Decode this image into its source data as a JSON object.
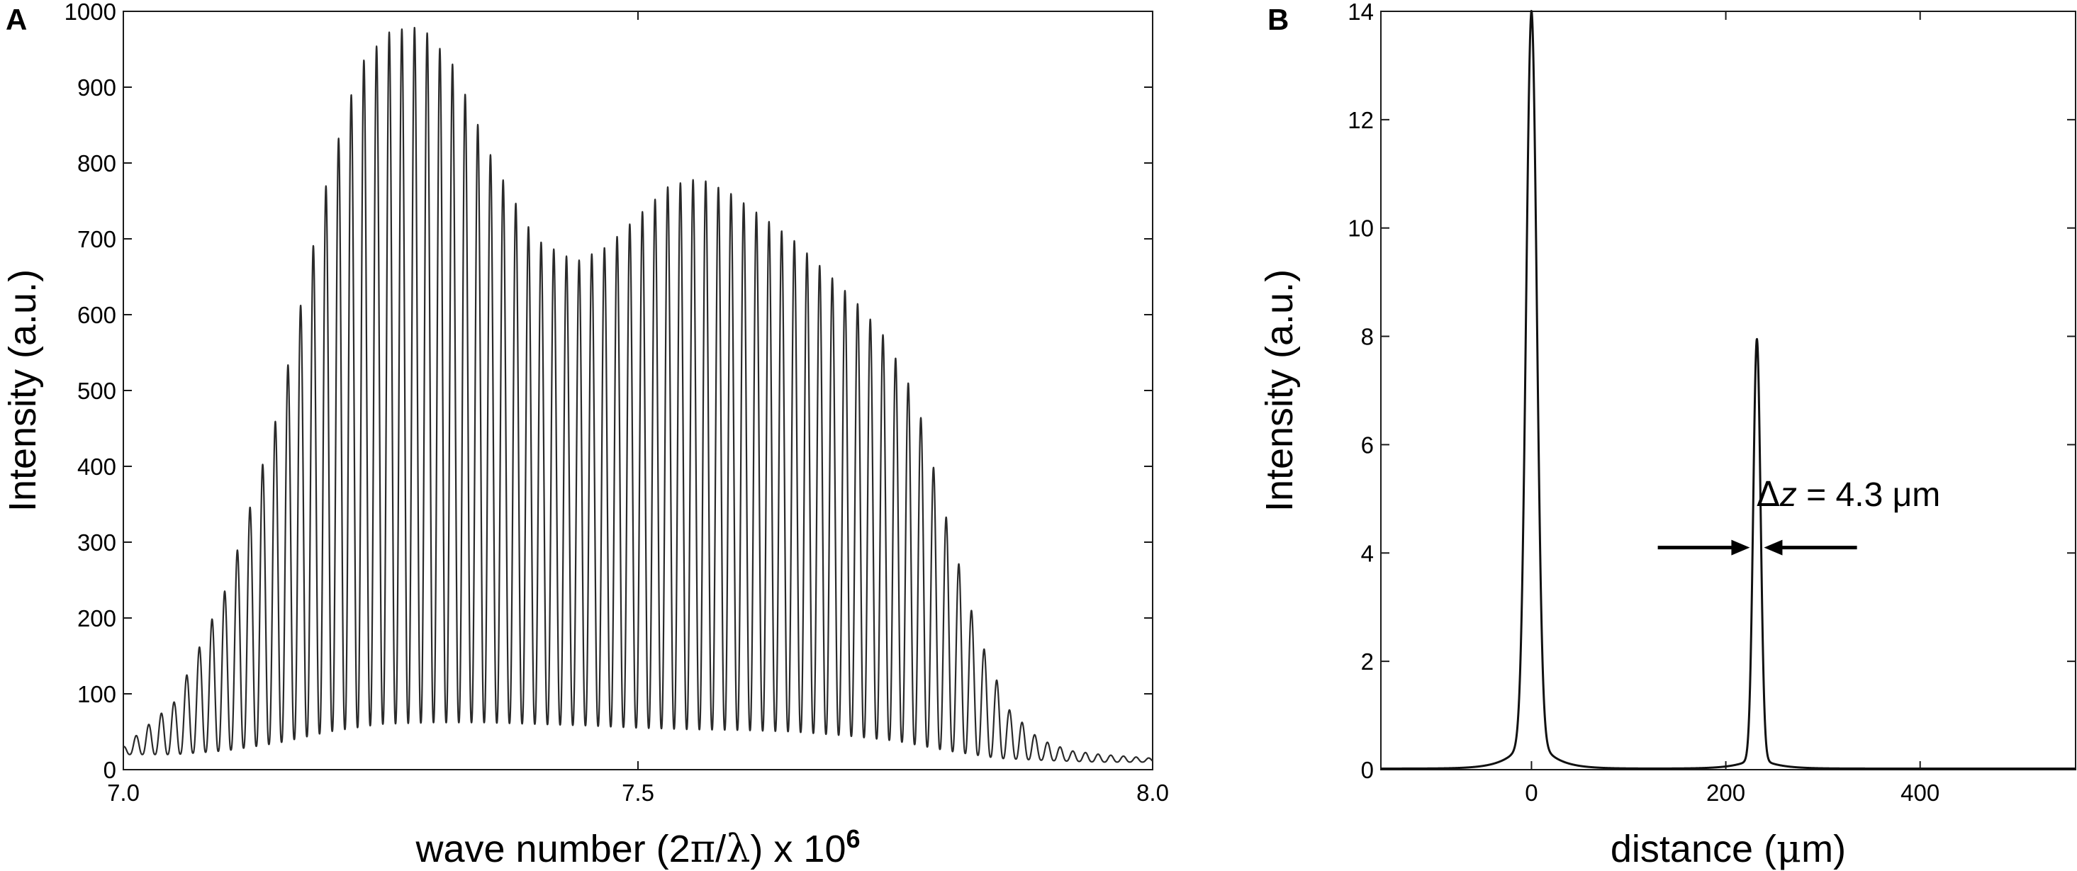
{
  "chart_data": [
    {
      "panel_label": "A",
      "type": "line",
      "title": "",
      "xlabel_parts": [
        "wave number  (2",
        "π",
        "/",
        "λ",
        ") x 10",
        "6"
      ],
      "ylabel": "Intensity (a.u.)",
      "xlim": [
        7.0,
        8.0
      ],
      "ylim": [
        0,
        1000
      ],
      "xticks": [
        7.0,
        7.5,
        8.0
      ],
      "xtick_labels": [
        "7.0",
        "7.5",
        "8.0"
      ],
      "yticks": [
        0,
        100,
        200,
        300,
        400,
        500,
        600,
        700,
        800,
        900,
        1000
      ],
      "ytick_labels": [
        "0",
        "100",
        "200",
        "300",
        "400",
        "500",
        "600",
        "700",
        "800",
        "900",
        "1000"
      ],
      "grid": false,
      "series": [
        {
          "fringe_period": 0.0123,
          "first_fringe_peak_x": 7.0,
          "envelope_maxima": {
            "x": [
              7.0,
              7.05,
              7.1,
              7.15,
              7.2,
              7.23,
              7.26,
              7.29,
              7.32,
              7.36,
              7.4,
              7.44,
              7.47,
              7.5,
              7.53,
              7.56,
              7.59,
              7.62,
              7.65,
              7.68,
              7.71,
              7.74,
              7.77,
              7.8,
              7.83,
              7.86,
              7.89,
              7.92,
              7.95,
              8.0
            ],
            "y": [
              30,
              90,
              240,
              470,
              790,
              930,
              975,
              980,
              930,
              800,
              700,
              670,
              690,
              730,
              770,
              780,
              760,
              730,
              700,
              660,
              620,
              570,
              490,
              330,
              180,
              80,
              40,
              25,
              20,
              15
            ]
          },
          "envelope_minima": {
            "x": [
              7.0,
              7.05,
              7.1,
              7.15,
              7.2,
              7.25,
              7.3,
              7.35,
              7.4,
              7.45,
              7.5,
              7.55,
              7.6,
              7.65,
              7.7,
              7.75,
              7.8,
              7.85,
              7.9,
              7.95,
              8.0
            ],
            "y": [
              20,
              20,
              25,
              35,
              50,
              60,
              62,
              62,
              60,
              58,
              55,
              53,
              52,
              50,
              45,
              38,
              25,
              15,
              12,
              10,
              10
            ]
          }
        }
      ]
    },
    {
      "panel_label": "B",
      "type": "line",
      "title": "",
      "xlabel_parts": [
        "distance (",
        "μ",
        "m)"
      ],
      "ylabel": "Intensity (a.u.)",
      "xlim": [
        -155,
        560
      ],
      "ylim": [
        0,
        14
      ],
      "xticks": [
        0,
        200,
        400
      ],
      "xtick_labels": [
        "0",
        "200",
        "400"
      ],
      "yticks": [
        0,
        2,
        4,
        6,
        8,
        10,
        12,
        14
      ],
      "ytick_labels": [
        "0",
        "2",
        "4",
        "6",
        "8",
        "10",
        "12",
        "14"
      ],
      "grid": false,
      "series": [
        {
          "peaks": [
            {
              "x": 0,
              "y": 13.2
            },
            {
              "x": 232,
              "y": 7.7
            }
          ],
          "baseline": 0.02
        }
      ],
      "annotations": [
        {
          "text_parts": [
            "Δ",
            "z",
            " = 4.3 μm"
          ],
          "arrow_pair_at": {
            "x": 232,
            "y": 4.1
          },
          "arrow_tails_x": [
            130,
            335
          ]
        }
      ]
    }
  ]
}
